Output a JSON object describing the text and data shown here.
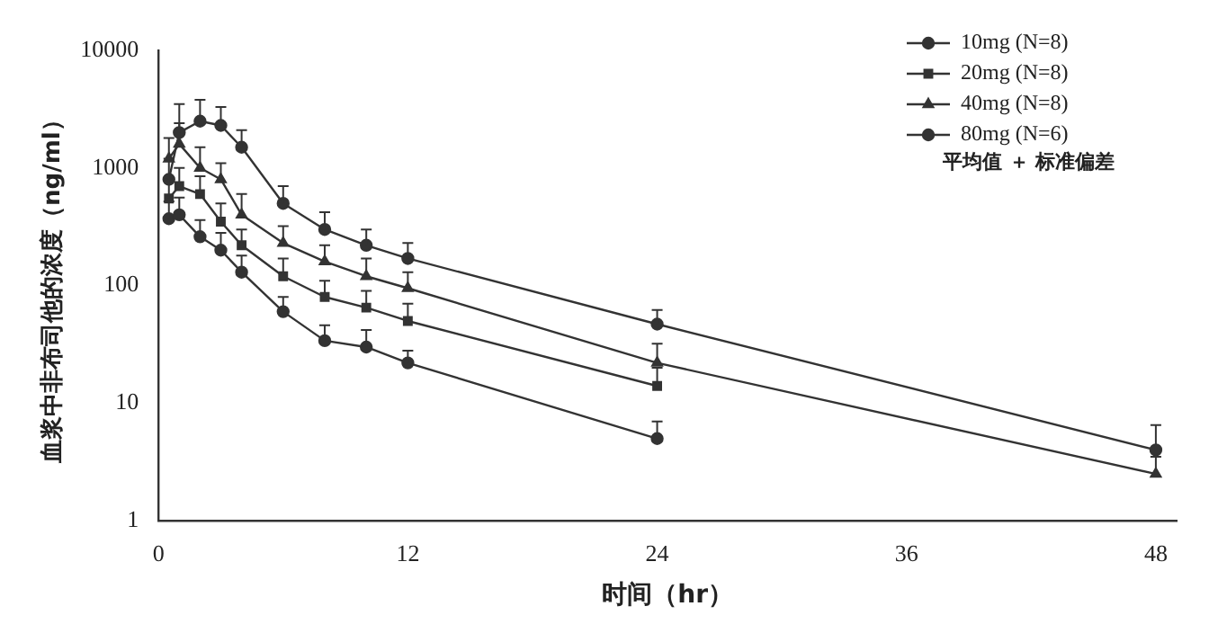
{
  "chart_data": {
    "type": "line",
    "xlabel": "时间（hr）",
    "ylabel": "血浆中非布司他的浓度（ng/ml）",
    "annotations": [
      "平均值 ＋ 标准偏差"
    ],
    "log": "y",
    "xlim": [
      0,
      49
    ],
    "xticks": [
      0,
      12,
      24,
      36,
      48
    ],
    "ylim": [
      1,
      10000
    ],
    "yticks": [
      1,
      10,
      100,
      1000,
      10000
    ],
    "grid": false,
    "legend": "top right",
    "line_style": "solid",
    "x": [
      0.5,
      1,
      2,
      3,
      4,
      6,
      8,
      10,
      12,
      24,
      48
    ],
    "series": [
      {
        "name": "10mg (N=8)",
        "color": "#333333",
        "marker": "circle",
        "values": [
          370,
          400,
          260,
          200,
          130,
          60,
          34,
          30,
          22,
          5,
          null
        ],
        "errors": [
          [
            370,
            520
          ],
          [
            400,
            560
          ],
          [
            260,
            360
          ],
          [
            200,
            280
          ],
          [
            130,
            180
          ],
          [
            60,
            80
          ],
          [
            34,
            46
          ],
          [
            30,
            42
          ],
          [
            22,
            28
          ],
          [
            5,
            7
          ],
          null
        ]
      },
      {
        "name": "20mg (N=8)",
        "color": "#333333",
        "marker": "square",
        "values": [
          550,
          700,
          600,
          350,
          220,
          120,
          80,
          65,
          50,
          14,
          null
        ],
        "errors": [
          [
            550,
            800
          ],
          [
            700,
            1000
          ],
          [
            600,
            850
          ],
          [
            350,
            500
          ],
          [
            220,
            300
          ],
          [
            120,
            170
          ],
          [
            80,
            110
          ],
          [
            65,
            90
          ],
          [
            50,
            70
          ],
          [
            14,
            20
          ],
          null
        ]
      },
      {
        "name": "40mg (N=8)",
        "color": "#333333",
        "marker": "triangle",
        "values": [
          1200,
          1600,
          1000,
          800,
          400,
          230,
          160,
          120,
          95,
          22,
          2.5
        ],
        "errors": [
          [
            1200,
            1800
          ],
          [
            1600,
            2400
          ],
          [
            1000,
            1500
          ],
          [
            800,
            1100
          ],
          [
            400,
            600
          ],
          [
            230,
            320
          ],
          [
            160,
            220
          ],
          [
            120,
            170
          ],
          [
            95,
            130
          ],
          [
            22,
            32
          ],
          [
            2.5,
            3.5
          ]
        ]
      },
      {
        "name": "80mg (N=6)",
        "color": "#333333",
        "marker": "circle",
        "values": [
          800,
          2000,
          2500,
          2300,
          1500,
          500,
          300,
          220,
          170,
          47,
          4
        ],
        "errors": [
          [
            800,
            1200
          ],
          [
            2000,
            3500
          ],
          [
            2500,
            3800
          ],
          [
            2300,
            3300
          ],
          [
            1500,
            2100
          ],
          [
            500,
            700
          ],
          [
            300,
            420
          ],
          [
            220,
            300
          ],
          [
            170,
            230
          ],
          [
            47,
            62
          ],
          [
            4,
            6.5
          ]
        ]
      }
    ]
  }
}
